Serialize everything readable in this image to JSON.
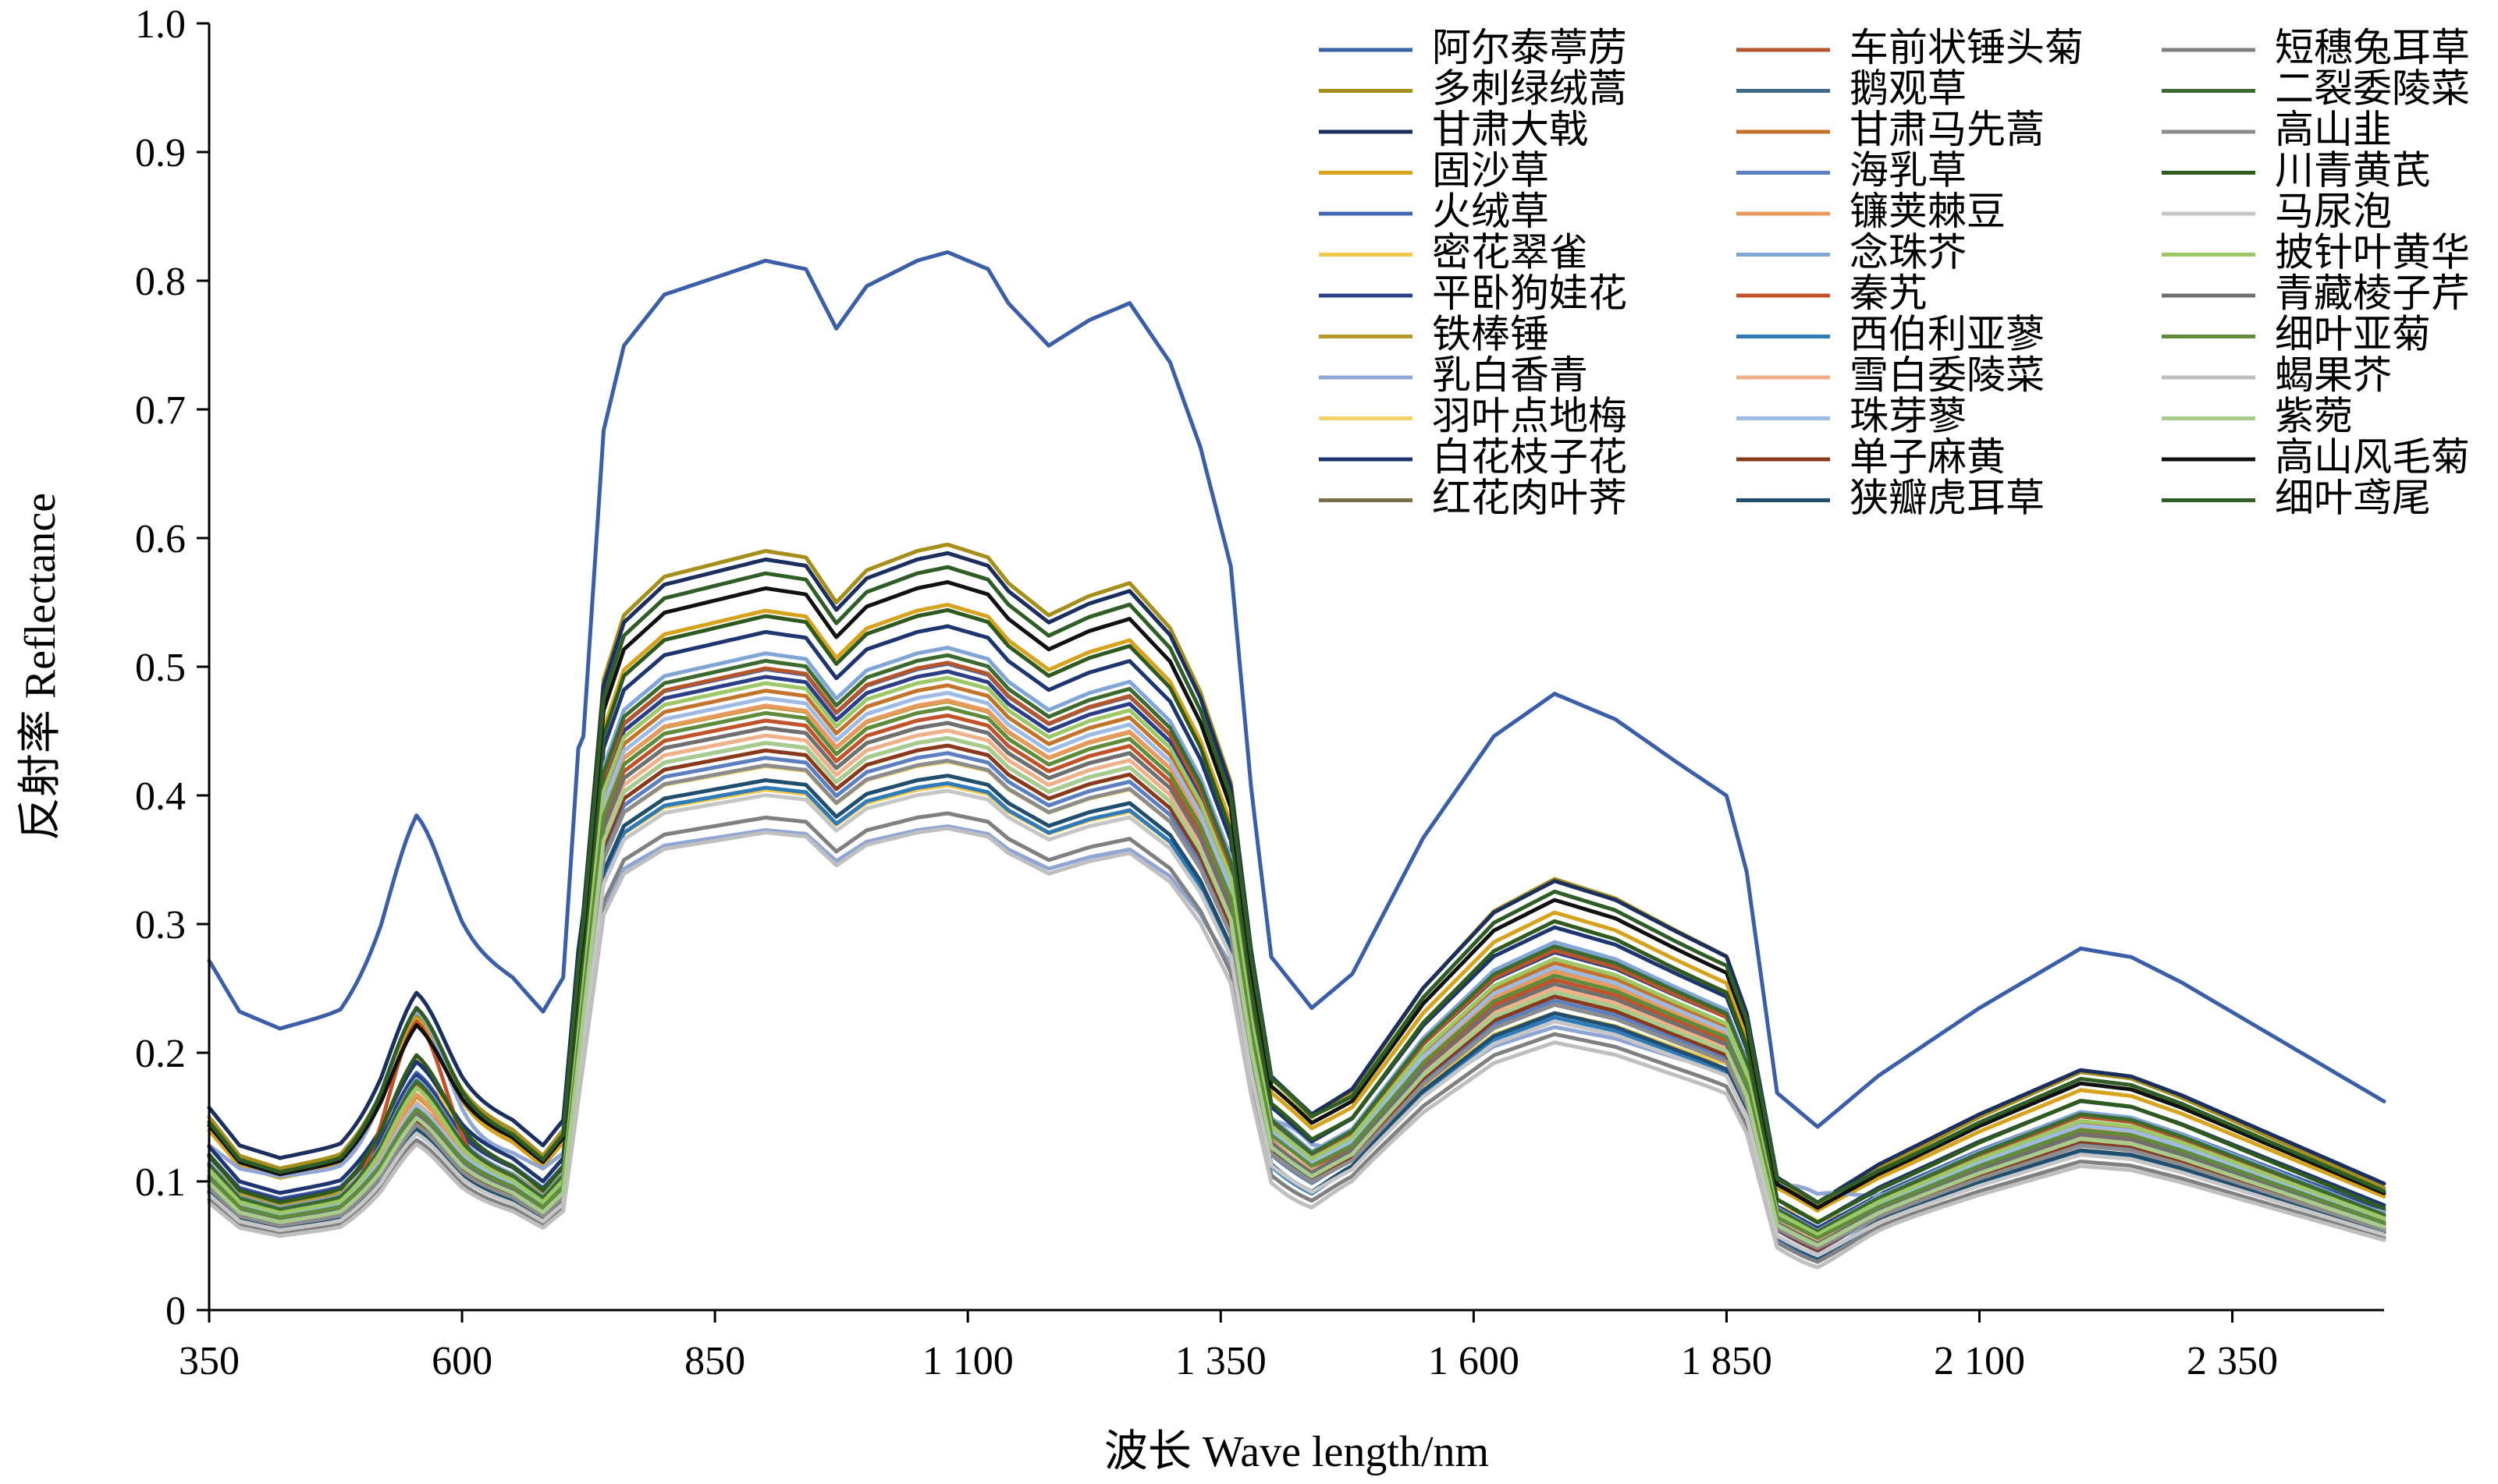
{
  "chart_data": {
    "type": "line",
    "title": "",
    "xlabel": "波长 Wave length/nm",
    "ylabel": "反射率 Reflectance",
    "xlim": [
      350,
      2500
    ],
    "ylim": [
      0,
      1.0
    ],
    "x_ticks": [
      350,
      600,
      850,
      1100,
      1350,
      1600,
      1850,
      2100,
      2350
    ],
    "x_tick_labels": [
      "350",
      "600",
      "850",
      "1 100",
      "1 350",
      "1 600",
      "1 850",
      "2 100",
      "2 350"
    ],
    "y_ticks": [
      0,
      0.1,
      0.2,
      0.3,
      0.4,
      0.5,
      0.6,
      0.7,
      0.8,
      0.9,
      1.0
    ],
    "y_tick_labels": [
      "0",
      "0.1",
      "0.2",
      "0.3",
      "0.4",
      "0.5",
      "0.6",
      "0.7",
      "0.8",
      "0.9",
      "1.0"
    ],
    "grid": false,
    "legend_position": "top-right",
    "legend_columns": 3,
    "series": [
      {
        "name": "阿尔泰葶苈",
        "color": "#3a5fa8",
        "scale": 1.32,
        "offset": 0.1,
        "vis": 0.06,
        "water": 1.0
      },
      {
        "name": "多刺绿绒蒿",
        "color": "#a58f1a",
        "scale": 1.0,
        "offset": 0.02,
        "vis": 0.04,
        "water": 1.0
      },
      {
        "name": "甘肃大戟",
        "color": "#1b2f5e",
        "scale": 0.98,
        "offset": 0.03,
        "vis": 0.05,
        "water": 1.0
      },
      {
        "name": "固沙草",
        "color": "#d7a21c",
        "scale": 0.92,
        "offset": 0.02,
        "vis": 0.05,
        "water": 0.95
      },
      {
        "name": "火绒草",
        "color": "#4466b0",
        "scale": 0.85,
        "offset": 0.01,
        "vis": 0.03,
        "water": 1.05
      },
      {
        "name": "密花翠雀",
        "color": "#f2c94c",
        "scale": 0.68,
        "offset": 0.02,
        "vis": 0.06,
        "water": 0.8
      },
      {
        "name": "平卧狗娃花",
        "color": "#2b3f88",
        "scale": 0.84,
        "offset": 0.01,
        "vis": 0.03,
        "water": 1.0
      },
      {
        "name": "铁棒锤",
        "color": "#b59a2a",
        "scale": 0.8,
        "offset": 0.01,
        "vis": 0.02,
        "water": 1.0
      },
      {
        "name": "乳白香青",
        "color": "#8fa5d4",
        "scale": 0.6,
        "offset": 0.05,
        "vis": 0.08,
        "water": 0.6
      },
      {
        "name": "羽叶点地梅",
        "color": "#f1d36a",
        "scale": 0.72,
        "offset": 0.01,
        "vis": 0.04,
        "water": 0.95
      },
      {
        "name": "白花枝子花",
        "color": "#1d3570",
        "scale": 0.9,
        "offset": 0.01,
        "vis": 0.03,
        "water": 1.0
      },
      {
        "name": "红花肉叶荠",
        "color": "#7d6c4a",
        "scale": 0.78,
        "offset": 0.0,
        "vis": 0.02,
        "water": 1.1
      },
      {
        "name": "车前状锤头菊",
        "color": "#b5562a",
        "scale": 0.86,
        "offset": 0.0,
        "vis": 0.03,
        "water": 1.05
      },
      {
        "name": "鹅观草",
        "color": "#3f6b8a",
        "scale": 0.76,
        "offset": 0.0,
        "vis": 0.02,
        "water": 1.1
      },
      {
        "name": "甘肃马先蒿",
        "color": "#c4732a",
        "scale": 0.83,
        "offset": 0.0,
        "vis": 0.02,
        "water": 1.05
      },
      {
        "name": "海乳草",
        "color": "#5b7fc0",
        "scale": 0.74,
        "offset": 0.0,
        "vis": 0.02,
        "water": 1.1
      },
      {
        "name": "镰荚棘豆",
        "color": "#e89a5e",
        "scale": 0.81,
        "offset": 0.0,
        "vis": 0.03,
        "water": 1.0
      },
      {
        "name": "念珠芥",
        "color": "#7fa6d6",
        "scale": 0.88,
        "offset": 0.0,
        "vis": 0.03,
        "water": 1.0
      },
      {
        "name": "秦艽",
        "color": "#c2522a",
        "scale": 0.79,
        "offset": 0.0,
        "vis": 0.09,
        "water": 1.05
      },
      {
        "name": "西伯利亚蓼",
        "color": "#2f7ab8",
        "scale": 0.7,
        "offset": 0.0,
        "vis": 0.02,
        "water": 1.15
      },
      {
        "name": "雪白委陵菜",
        "color": "#f0b088",
        "scale": 0.77,
        "offset": 0.0,
        "vis": 0.03,
        "water": 1.0
      },
      {
        "name": "珠芽蓼",
        "color": "#9dbbe4",
        "scale": 0.82,
        "offset": 0.0,
        "vis": 0.02,
        "water": 1.0
      },
      {
        "name": "单子麻黄",
        "color": "#8a3a1a",
        "scale": 0.75,
        "offset": 0.0,
        "vis": 0.02,
        "water": 1.1
      },
      {
        "name": "狭瓣虎耳草",
        "color": "#1f4e6e",
        "scale": 0.71,
        "offset": 0.0,
        "vis": 0.02,
        "water": 1.15
      },
      {
        "name": "短穗兔耳草",
        "color": "#808080",
        "scale": 0.66,
        "offset": 0.0,
        "vis": 0.02,
        "water": 1.15
      },
      {
        "name": "二裂委陵菜",
        "color": "#3d6b2f",
        "scale": 0.87,
        "offset": 0.0,
        "vis": 0.03,
        "water": 1.0
      },
      {
        "name": "高山韭",
        "color": "#8c8c8c",
        "scale": 0.73,
        "offset": 0.0,
        "vis": 0.02,
        "water": 1.05
      },
      {
        "name": "川青黄芪",
        "color": "#2f5a1e",
        "scale": 0.93,
        "offset": 0.0,
        "vis": 0.04,
        "water": 0.95
      },
      {
        "name": "马尿泡",
        "color": "#c6c6c6",
        "scale": 0.69,
        "offset": 0.0,
        "vis": 0.02,
        "water": 1.1
      },
      {
        "name": "披针叶黄华",
        "color": "#9cc866",
        "scale": 0.84,
        "offset": 0.0,
        "vis": 0.03,
        "water": 1.0
      },
      {
        "name": "青藏棱子芹",
        "color": "#707070",
        "scale": 0.78,
        "offset": 0.0,
        "vis": 0.02,
        "water": 1.05
      },
      {
        "name": "细叶亚菊",
        "color": "#5e8c3a",
        "scale": 0.8,
        "offset": 0.0,
        "vis": 0.02,
        "water": 1.0
      },
      {
        "name": "蝎果芥",
        "color": "#bfbfbf",
        "scale": 0.64,
        "offset": 0.0,
        "vis": 0.02,
        "water": 1.2
      },
      {
        "name": "紫菀",
        "color": "#a8cc8c",
        "scale": 0.76,
        "offset": 0.0,
        "vis": 0.02,
        "water": 1.05
      },
      {
        "name": "高山风毛菊",
        "color": "#111111",
        "scale": 0.95,
        "offset": 0.02,
        "vis": 0.04,
        "water": 0.95
      },
      {
        "name": "细叶鸢尾",
        "color": "#2e5e26",
        "scale": 0.97,
        "offset": 0.02,
        "vis": 0.05,
        "water": 0.9
      }
    ]
  }
}
